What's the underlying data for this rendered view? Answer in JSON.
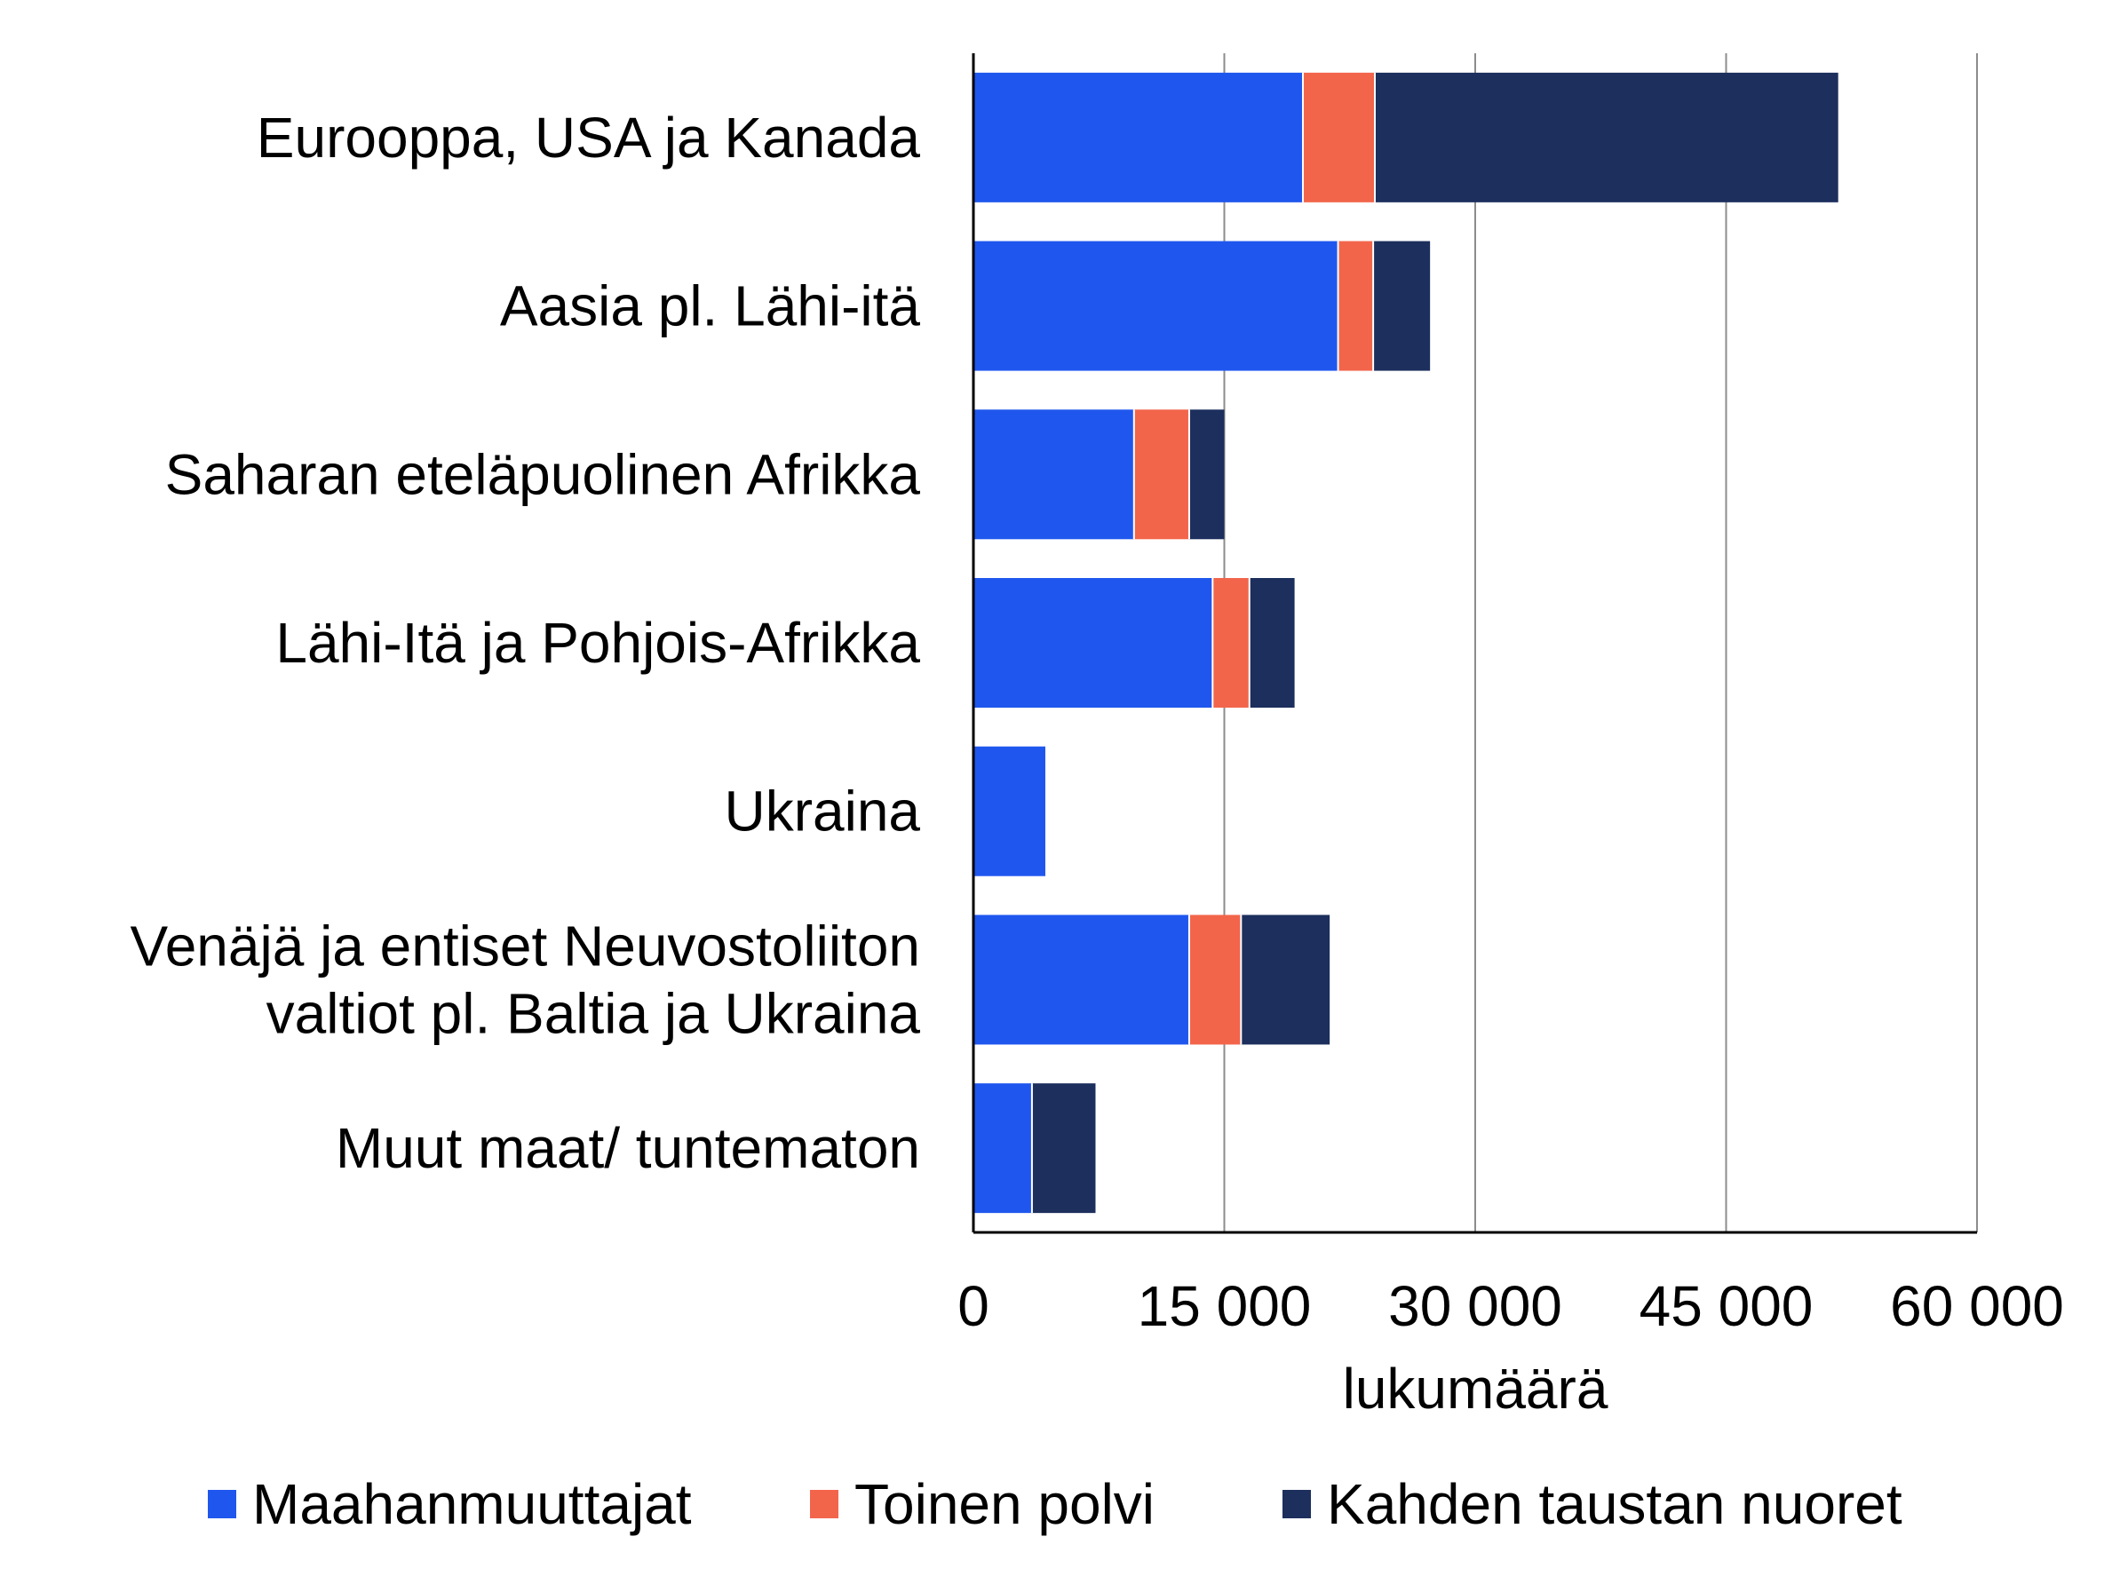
{
  "chart_data": {
    "type": "bar",
    "orientation": "horizontal",
    "stacked": true,
    "categories": [
      [
        "Eurooppa, USA ja Kanada"
      ],
      [
        "Aasia pl. Lähi-itä"
      ],
      [
        "Saharan eteläpuolinen Afrikka"
      ],
      [
        "Lähi-Itä ja Pohjois-Afrikka"
      ],
      [
        "Ukraina"
      ],
      [
        "Venäjä ja entiset Neuvostoliiton",
        "valtiot pl. Baltia ja Ukraina"
      ],
      [
        "Muut maat/ tuntematon"
      ]
    ],
    "series": [
      {
        "name": "Maahanmuuttajat",
        "color": "#1f57ee",
        "values": [
          19700,
          21800,
          9600,
          14300,
          4300,
          12900,
          3500
        ]
      },
      {
        "name": "Toinen polvi",
        "color": "#f2654b",
        "values": [
          4300,
          2100,
          3300,
          2200,
          0,
          3100,
          0
        ]
      },
      {
        "name": "Kahden taustan nuoret",
        "color": "#1c2f5d",
        "values": [
          27700,
          3400,
          2100,
          2700,
          0,
          5300,
          3800
        ]
      }
    ],
    "xlim": [
      0,
      60000
    ],
    "xticks": [
      0,
      15000,
      30000,
      45000,
      60000
    ],
    "xtick_labels": [
      "0",
      "15 000",
      "30 000",
      "45 000",
      "60 000"
    ],
    "xlabel": "lukumäärä",
    "grid": "vertical",
    "legend": "bottom"
  }
}
